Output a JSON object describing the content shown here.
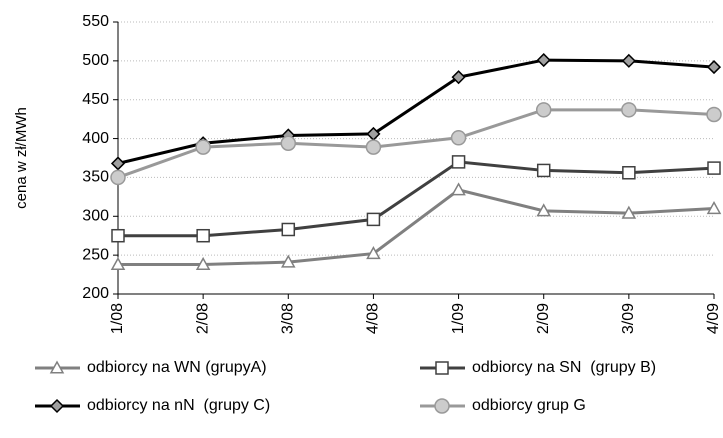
{
  "chart_data": {
    "type": "line",
    "y_label": "cena w zł/MWh",
    "categories": [
      "1/08",
      "2/08",
      "3/08",
      "4/08",
      "1/09",
      "2/09",
      "3/09",
      "4/09"
    ],
    "series": [
      {
        "name": "odbiorcy na WN (grupyA)",
        "color": "#808080",
        "marker": "triangle",
        "marker_fill": "#ffffff",
        "values": [
          238,
          238,
          241,
          252,
          334,
          307,
          304,
          310
        ]
      },
      {
        "name": "odbiorcy na SN  (grupy B)",
        "color": "#404040",
        "marker": "square",
        "marker_fill": "#ffffff",
        "values": [
          275,
          275,
          283,
          296,
          370,
          359,
          356,
          362
        ]
      },
      {
        "name": "odbiorcy na nN  (grupy C)",
        "color": "#000000",
        "marker": "diamond",
        "marker_fill": "#a0a0a0",
        "values": [
          368,
          394,
          404,
          406,
          479,
          501,
          500,
          492
        ]
      },
      {
        "name": "odbiorcy grup G",
        "color": "#999999",
        "marker": "circle",
        "marker_fill": "#cccccc",
        "values": [
          350,
          389,
          394,
          389,
          401,
          437,
          437,
          431
        ]
      }
    ],
    "ylim": [
      200,
      550
    ],
    "yticks": [
      200,
      250,
      300,
      350,
      400,
      450,
      500,
      550
    ],
    "grid": true
  }
}
